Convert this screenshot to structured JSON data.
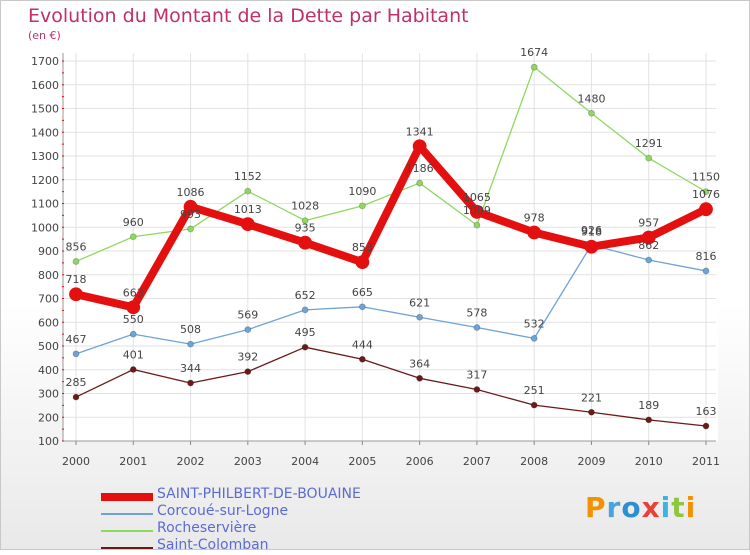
{
  "title": "Evolution du Montant de la Dette par Habitant",
  "subtitle": "(en €)",
  "logo": {
    "text": "Proxiti",
    "colors": [
      "#f39200",
      "#4aa3df",
      "#2b8fd1",
      "#e8413b",
      "#3bb4e5",
      "#8ec63f",
      "#f39200"
    ]
  },
  "chart_data": {
    "type": "line",
    "x": [
      "2000",
      "2001",
      "2002",
      "2003",
      "2004",
      "2005",
      "2006",
      "2007",
      "2008",
      "2009",
      "2010",
      "2011"
    ],
    "ylim": [
      100,
      1700
    ],
    "yticks": [
      100,
      200,
      300,
      400,
      500,
      600,
      700,
      800,
      900,
      1000,
      1100,
      1200,
      1300,
      1400,
      1500,
      1600,
      1700
    ],
    "grid": true,
    "legend_placement": "bottom-left",
    "series": [
      {
        "name": "SAINT-PHILBERT-DE-BOUAINE",
        "color": "#e41010",
        "values": [
          718,
          663,
          1086,
          1013,
          935,
          853,
          1341,
          1065,
          978,
          918,
          957,
          1076
        ]
      },
      {
        "name": "Corcoué-sur-Logne",
        "color": "#6fa3d6",
        "values": [
          467,
          550,
          508,
          569,
          652,
          665,
          621,
          578,
          532,
          926,
          862,
          816
        ]
      },
      {
        "name": "Rocheservière",
        "color": "#8fd860",
        "values": [
          856,
          960,
          993,
          1152,
          1028,
          1090,
          1186,
          1009,
          1674,
          1480,
          1291,
          1150
        ]
      },
      {
        "name": "Saint-Colomban",
        "color": "#6b1a1a",
        "values": [
          285,
          401,
          344,
          392,
          495,
          444,
          364,
          317,
          251,
          221,
          189,
          163
        ]
      }
    ]
  }
}
